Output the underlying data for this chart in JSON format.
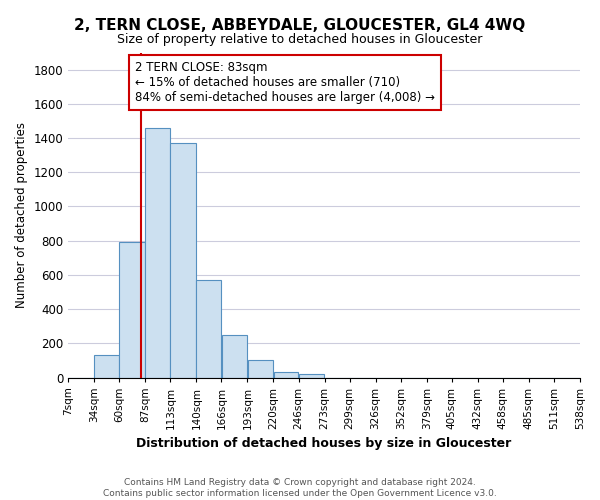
{
  "title": "2, TERN CLOSE, ABBEYDALE, GLOUCESTER, GL4 4WQ",
  "subtitle": "Size of property relative to detached houses in Gloucester",
  "xlabel": "Distribution of detached houses by size in Gloucester",
  "ylabel": "Number of detached properties",
  "bin_labels": [
    "7sqm",
    "34sqm",
    "60sqm",
    "87sqm",
    "113sqm",
    "140sqm",
    "166sqm",
    "193sqm",
    "220sqm",
    "246sqm",
    "273sqm",
    "299sqm",
    "326sqm",
    "352sqm",
    "379sqm",
    "405sqm",
    "432sqm",
    "458sqm",
    "485sqm",
    "511sqm",
    "538sqm"
  ],
  "bar_heights": [
    0,
    130,
    790,
    1460,
    1370,
    570,
    250,
    105,
    30,
    20,
    0,
    0,
    0,
    0,
    0,
    0,
    0,
    0,
    0,
    0
  ],
  "bar_color": "#cce0f0",
  "bar_edge_color": "#5590c0",
  "vline_x": 83,
  "vline_color": "#cc0000",
  "annotation_text": "2 TERN CLOSE: 83sqm\n← 15% of detached houses are smaller (710)\n84% of semi-detached houses are larger (4,008) →",
  "annotation_box_color": "#ffffff",
  "annotation_box_edge": "#cc0000",
  "ylim": [
    0,
    1900
  ],
  "yticks": [
    0,
    200,
    400,
    600,
    800,
    1000,
    1200,
    1400,
    1600,
    1800
  ],
  "footer_line1": "Contains HM Land Registry data © Crown copyright and database right 2024.",
  "footer_line2": "Contains public sector information licensed under the Open Government Licence v3.0.",
  "bg_color": "#ffffff",
  "grid_color": "#ccccdd"
}
